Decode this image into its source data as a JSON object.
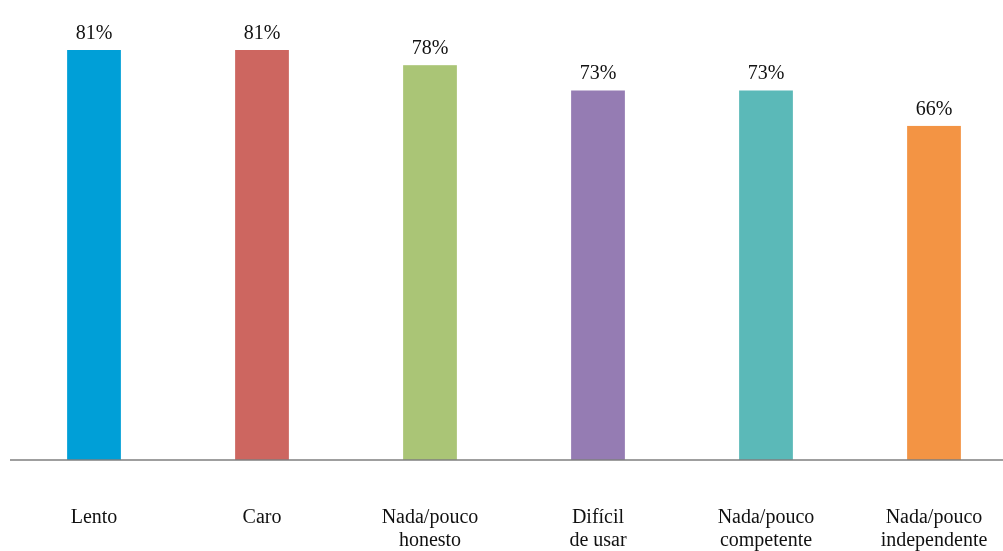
{
  "chart_data": {
    "type": "bar",
    "categories": [
      "Lento",
      "Caro",
      "Nada/pouco\nhonesto",
      "Difícil\nde usar",
      "Nada/pouco\ncompetente",
      "Nada/pouco\nindependente"
    ],
    "values": [
      81,
      81,
      78,
      73,
      73,
      66
    ],
    "colors": [
      "#009fd7",
      "#cd6660",
      "#aac576",
      "#957cb3",
      "#5bb9b8",
      "#f39444"
    ],
    "value_labels": [
      "81%",
      "81%",
      "78%",
      "73%",
      "73%",
      "66%"
    ],
    "tick_labels": "x"
  }
}
